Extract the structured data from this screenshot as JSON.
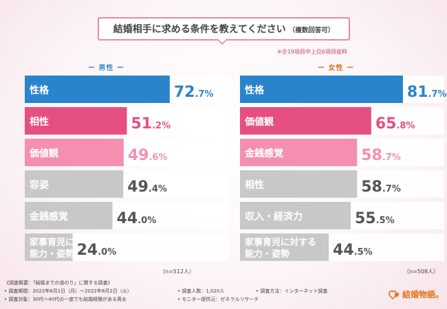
{
  "title": {
    "main": "結婚相手に求める条件を教えてください",
    "sub": "（複数回答可）"
  },
  "note": "※全19項目中上位6項目抜粋",
  "chart_data": [
    {
      "type": "bar",
      "group": "男性",
      "group_label": "ー 男性 ー",
      "categories": [
        "性格",
        "相性",
        "価値観",
        "容姿",
        "金銭感覚",
        "家事育児に対する|能力・姿勢"
      ],
      "values": [
        72.7,
        51.2,
        49.6,
        49.4,
        44.0,
        24.0
      ],
      "value_labels": [
        [
          "72",
          ".7%"
        ],
        [
          "51",
          ".2%"
        ],
        [
          "49",
          ".6%"
        ],
        [
          "49",
          ".4%"
        ],
        [
          "44",
          ".0%"
        ],
        [
          "24",
          ".0%"
        ]
      ],
      "count_label": "（n=512人）",
      "xlim": [
        0,
        100
      ],
      "colors": [
        "#2a84cc",
        "#e64f82",
        "#f58fb0",
        "#c8c8c8",
        "#c8c8c8",
        "#c8c8c8"
      ],
      "label_colors": [
        "#2a84cc",
        "#e64f82",
        "#f58fb0",
        "#555555",
        "#555555",
        "#555555"
      ]
    },
    {
      "type": "bar",
      "group": "女性",
      "group_label": "ー 女性 ー",
      "categories": [
        "性格",
        "価値観",
        "金銭感覚",
        "相性",
        "収入・経済力",
        "家事育児に対する|能力・姿勢"
      ],
      "values": [
        81.7,
        65.8,
        58.7,
        58.7,
        55.5,
        44.5
      ],
      "value_labels": [
        [
          "81",
          ".7%"
        ],
        [
          "65",
          ".8%"
        ],
        [
          "58",
          ".7%"
        ],
        [
          "58",
          ".7%"
        ],
        [
          "55",
          ".5%"
        ],
        [
          "44",
          ".5%"
        ]
      ],
      "count_label": "（n=508人）",
      "xlim": [
        0,
        100
      ],
      "colors": [
        "#2a84cc",
        "#e64f82",
        "#f58fb0",
        "#c8c8c8",
        "#c8c8c8",
        "#c8c8c8"
      ],
      "label_colors": [
        "#2a84cc",
        "#e64f82",
        "#f58fb0",
        "#555555",
        "#555555",
        "#555555"
      ]
    }
  ],
  "footer": {
    "heading": "《調査概要：「結婚までの道のり」に関する調査》",
    "period": "• 調査期間：2022年8月1日（月）〜2022年8月2日（火）",
    "subject": "• 調査対象：30代〜40代の一度でも結婚経験がある男女",
    "count": "• 調査人数：1,020人",
    "provider": "• モニター提供元：ゼネラルリサーチ",
    "method": "• 調査方法：インターネット調査"
  },
  "logo": {
    "text": "結婚物語。",
    "accent": "#e2731e"
  }
}
